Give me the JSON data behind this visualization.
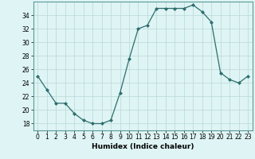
{
  "x": [
    0,
    1,
    2,
    3,
    4,
    5,
    6,
    7,
    8,
    9,
    10,
    11,
    12,
    13,
    14,
    15,
    16,
    17,
    18,
    19,
    20,
    21,
    22,
    23
  ],
  "y": [
    25,
    23,
    21,
    21,
    19.5,
    18.5,
    18,
    18,
    18.5,
    22.5,
    27.5,
    32,
    32.5,
    35,
    35,
    35,
    35,
    35.5,
    34.5,
    33,
    25.5,
    24.5,
    24,
    25
  ],
  "line_color": "#2d6e6e",
  "marker": "D",
  "marker_size": 2.0,
  "bg_color": "#dff4f4",
  "grid_color_major": "#b8d8d8",
  "xlabel": "Humidex (Indice chaleur)",
  "xlim": [
    -0.5,
    23.5
  ],
  "ylim": [
    17,
    36
  ],
  "yticks": [
    18,
    20,
    22,
    24,
    26,
    28,
    30,
    32,
    34
  ],
  "xticks": [
    0,
    1,
    2,
    3,
    4,
    5,
    6,
    7,
    8,
    9,
    10,
    11,
    12,
    13,
    14,
    15,
    16,
    17,
    18,
    19,
    20,
    21,
    22,
    23
  ],
  "xlabel_fontsize": 6.5,
  "tick_fontsize": 5.5,
  "linewidth": 0.9
}
